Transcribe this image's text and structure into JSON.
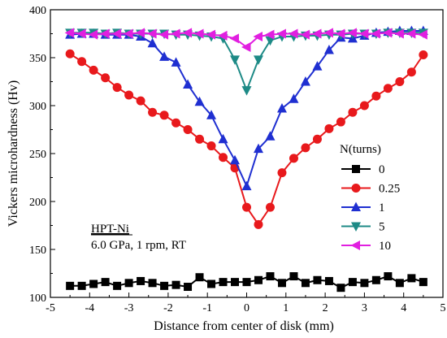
{
  "chart_data": {
    "type": "line",
    "xlabel": "Distance from center of disk (mm)",
    "ylabel": "Vickers microhardness (Hv)",
    "xlim": [
      -5,
      5
    ],
    "ylim": [
      100,
      400
    ],
    "xticks": [
      -5,
      -4,
      -3,
      -2,
      -1,
      0,
      1,
      2,
      3,
      4,
      5
    ],
    "yticks": [
      100,
      150,
      200,
      250,
      300,
      350,
      400
    ],
    "grid": false,
    "legend_title": "N(turns)",
    "legend_position": "right",
    "annotations": {
      "title_underlined": "HPT-Ni",
      "conditions": "6.0 GPa, 1 rpm, RT"
    },
    "series": [
      {
        "name": "0",
        "color": "#000000",
        "marker": "square",
        "x": [
          -4.5,
          -4.2,
          -3.9,
          -3.6,
          -3.3,
          -3.0,
          -2.7,
          -2.4,
          -2.1,
          -1.8,
          -1.5,
          -1.2,
          -0.9,
          -0.6,
          -0.3,
          0.0,
          0.3,
          0.6,
          0.9,
          1.2,
          1.5,
          1.8,
          2.1,
          2.4,
          2.7,
          3.0,
          3.3,
          3.6,
          3.9,
          4.2,
          4.5
        ],
        "y": [
          112,
          112,
          114,
          116,
          112,
          115,
          117,
          115,
          112,
          113,
          111,
          121,
          114,
          116,
          116,
          116,
          118,
          122,
          115,
          122,
          115,
          118,
          117,
          110,
          116,
          115,
          118,
          122,
          115,
          120,
          116
        ]
      },
      {
        "name": "0.25",
        "color": "#e8191c",
        "marker": "circle",
        "x": [
          -4.5,
          -4.2,
          -3.9,
          -3.6,
          -3.3,
          -3.0,
          -2.7,
          -2.4,
          -2.1,
          -1.8,
          -1.5,
          -1.2,
          -0.9,
          -0.6,
          -0.3,
          0.0,
          0.3,
          0.6,
          0.9,
          1.2,
          1.5,
          1.8,
          2.1,
          2.4,
          2.7,
          3.0,
          3.3,
          3.6,
          3.9,
          4.2,
          4.5
        ],
        "y": [
          354,
          346,
          337,
          329,
          319,
          311,
          305,
          293,
          290,
          282,
          275,
          265,
          258,
          246,
          235,
          194,
          176,
          194,
          230,
          245,
          256,
          265,
          276,
          283,
          293,
          300,
          310,
          318,
          325,
          335,
          353
        ]
      },
      {
        "name": "1",
        "color": "#1f2fd1",
        "marker": "triangle-up",
        "x": [
          -4.5,
          -4.2,
          -3.9,
          -3.6,
          -3.3,
          -3.0,
          -2.7,
          -2.4,
          -2.1,
          -1.8,
          -1.5,
          -1.2,
          -0.9,
          -0.6,
          -0.3,
          0.0,
          0.3,
          0.6,
          0.9,
          1.2,
          1.5,
          1.8,
          2.1,
          2.4,
          2.7,
          3.0,
          3.3,
          3.6,
          3.9,
          4.2,
          4.5
        ],
        "y": [
          374,
          375,
          375,
          374,
          374,
          374,
          372,
          365,
          351,
          345,
          322,
          304,
          290,
          265,
          243,
          216,
          255,
          268,
          297,
          307,
          325,
          341,
          358,
          371,
          370,
          373,
          376,
          377,
          378,
          378,
          378
        ]
      },
      {
        "name": "5",
        "color": "#1d8a86",
        "marker": "triangle-down",
        "x": [
          -4.5,
          -4.2,
          -3.9,
          -3.6,
          -3.3,
          -3.0,
          -2.7,
          -2.4,
          -2.1,
          -1.8,
          -1.5,
          -1.2,
          -0.9,
          -0.6,
          -0.3,
          0.0,
          0.3,
          0.6,
          0.9,
          1.2,
          1.5,
          1.8,
          2.1,
          2.4,
          2.7,
          3.0,
          3.3,
          3.6,
          3.9,
          4.2,
          4.5
        ],
        "y": [
          376,
          376,
          376,
          375,
          376,
          375,
          375,
          375,
          375,
          374,
          374,
          373,
          372,
          370,
          348,
          316,
          348,
          368,
          372,
          372,
          373,
          373,
          374,
          374,
          375,
          375,
          375,
          376,
          376,
          376,
          376
        ]
      },
      {
        "name": "10",
        "color": "#e11fe0",
        "marker": "triangle-left",
        "x": [
          -4.5,
          -4.2,
          -3.9,
          -3.6,
          -3.3,
          -3.0,
          -2.7,
          -2.4,
          -2.1,
          -1.8,
          -1.5,
          -1.2,
          -0.9,
          -0.6,
          -0.3,
          0.0,
          0.3,
          0.6,
          0.9,
          1.2,
          1.5,
          1.8,
          2.1,
          2.4,
          2.7,
          3.0,
          3.3,
          3.6,
          3.9,
          4.2,
          4.5
        ],
        "y": [
          376,
          375,
          374,
          375,
          375,
          375,
          376,
          375,
          374,
          375,
          376,
          375,
          374,
          373,
          370,
          361,
          372,
          374,
          375,
          375,
          374,
          375,
          376,
          375,
          376,
          375,
          375,
          376,
          375,
          375,
          374
        ]
      }
    ]
  }
}
